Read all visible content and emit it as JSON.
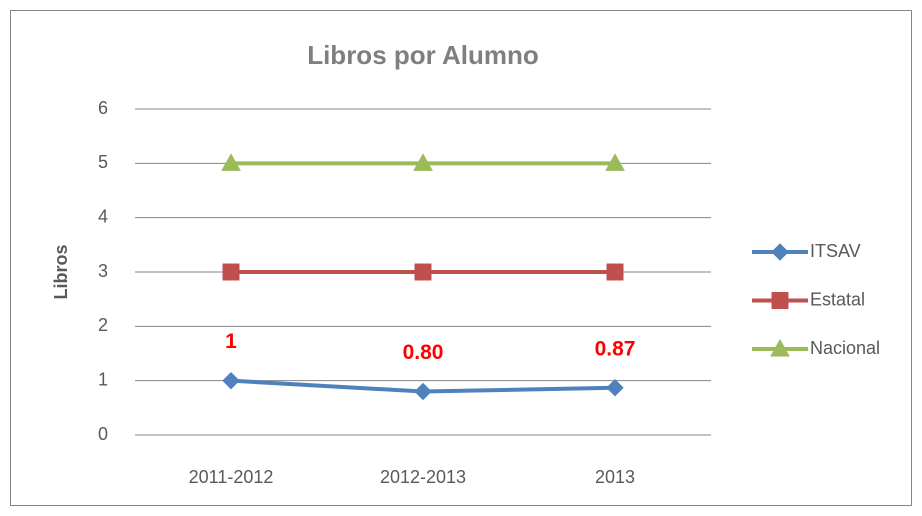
{
  "chart_data": {
    "type": "line",
    "title": "Libros por Alumno",
    "y_label": "Libros",
    "categories": [
      "2011-2012",
      "2012-2013",
      "2013"
    ],
    "series": [
      {
        "name": "ITSAV",
        "color": "#4f81bd",
        "marker": "diamond",
        "values": [
          1,
          0.8,
          0.87
        ],
        "value_labels": [
          "1",
          "0.80",
          "0.87"
        ],
        "value_label_color": "#ff0000"
      },
      {
        "name": "Estatal",
        "color": "#c0504d",
        "marker": "square",
        "values": [
          3,
          3,
          3
        ]
      },
      {
        "name": "Nacional",
        "color": "#9bbb59",
        "marker": "triangle",
        "values": [
          5,
          5,
          5
        ]
      }
    ],
    "ylim": [
      0,
      6
    ],
    "yticks": [
      0,
      1,
      2,
      3,
      4,
      5,
      6
    ],
    "grid": true,
    "legend": "right"
  }
}
